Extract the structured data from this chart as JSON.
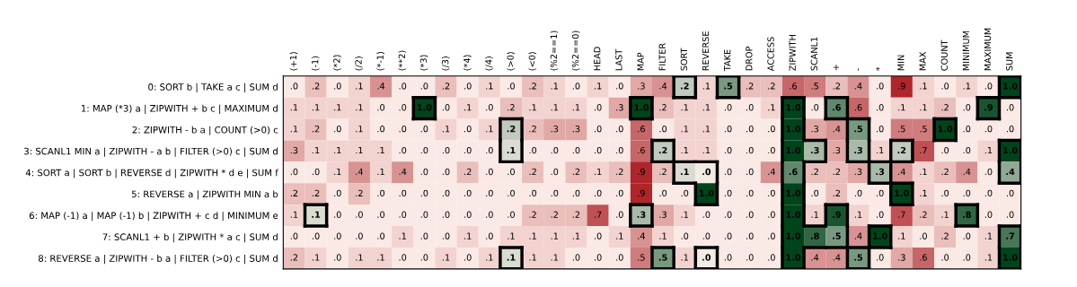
{
  "chart_data": {
    "type": "heatmap",
    "cell_labels": [
      [
        ".0",
        ".2",
        ".0",
        ".1",
        ".4",
        ".0",
        ".0",
        ".2",
        ".0",
        ".1",
        ".0",
        ".2",
        ".1",
        ".0",
        ".1",
        ".0",
        ".3",
        ".4",
        ".2",
        ".1",
        ".5",
        ".2",
        ".2",
        ".6",
        ".5",
        ".2",
        ".4",
        ".0",
        ".9",
        ".1",
        ".0",
        ".1",
        ".0",
        "1.0"
      ],
      [
        ".1",
        ".1",
        ".1",
        ".1",
        ".0",
        ".0",
        "1.0",
        ".0",
        ".1",
        ".0",
        ".2",
        ".1",
        ".1",
        ".1",
        ".0",
        ".3",
        "1.0",
        ".2",
        ".1",
        ".1",
        ".0",
        ".0",
        ".1",
        "1.0",
        ".0",
        ".6",
        ".6",
        ".0",
        ".1",
        ".1",
        ".2",
        ".0",
        ".9",
        ".0"
      ],
      [
        ".1",
        ".2",
        ".0",
        ".1",
        ".0",
        ".0",
        ".0",
        ".1",
        ".0",
        ".1",
        ".2",
        ".2",
        ".3",
        ".3",
        ".0",
        ".0",
        ".6",
        ".0",
        ".1",
        ".1",
        ".0",
        ".0",
        ".0",
        "1.0",
        ".3",
        ".4",
        ".5",
        ".0",
        ".5",
        ".5",
        "1.0",
        ".0",
        ".0",
        ".0"
      ],
      [
        ".3",
        ".1",
        ".1",
        ".1",
        ".1",
        ".0",
        ".0",
        ".0",
        ".0",
        ".0",
        ".1",
        ".0",
        ".0",
        ".0",
        ".0",
        ".0",
        ".6",
        ".2",
        ".1",
        ".1",
        ".0",
        ".0",
        ".0",
        "1.0",
        ".3",
        ".3",
        ".3",
        ".1",
        ".2",
        ".7",
        ".0",
        ".0",
        ".1",
        "1.0"
      ],
      [
        ".0",
        ".0",
        ".1",
        ".4",
        ".1",
        ".4",
        ".0",
        ".0",
        ".2",
        ".0",
        ".0",
        ".2",
        ".0",
        ".2",
        ".1",
        ".2",
        ".9",
        ".2",
        ".1",
        ".0",
        ".0",
        ".0",
        ".4",
        ".6",
        ".2",
        ".2",
        ".3",
        ".3",
        ".4",
        ".1",
        ".2",
        ".4",
        ".0",
        ".4"
      ],
      [
        ".2",
        ".2",
        ".0",
        ".2",
        ".0",
        ".0",
        ".0",
        ".0",
        ".0",
        ".0",
        ".0",
        ".0",
        ".0",
        ".0",
        ".0",
        ".0",
        ".9",
        ".0",
        ".0",
        "1.0",
        ".0",
        ".0",
        ".0",
        "1.0",
        ".0",
        ".2",
        ".0",
        ".0",
        "1.0",
        ".1",
        ".0",
        ".0",
        ".0",
        ".0"
      ],
      [
        ".1",
        ".1",
        ".0",
        ".0",
        ".0",
        ".0",
        ".0",
        ".0",
        ".0",
        ".0",
        ".0",
        ".2",
        ".2",
        ".2",
        ".7",
        ".0",
        ".3",
        ".3",
        ".1",
        ".0",
        ".0",
        ".0",
        ".0",
        "1.0",
        ".1",
        ".9",
        ".1",
        ".0",
        ".7",
        ".2",
        ".1",
        ".8",
        ".0",
        ".0"
      ],
      [
        ".0",
        ".0",
        ".0",
        ".0",
        ".0",
        ".1",
        ".0",
        ".0",
        ".1",
        ".0",
        ".1",
        ".1",
        ".1",
        ".1",
        ".0",
        ".1",
        ".4",
        ".1",
        ".0",
        ".0",
        ".0",
        ".0",
        ".0",
        "1.0",
        ".8",
        ".5",
        ".4",
        "1.0",
        ".1",
        ".0",
        ".2",
        ".0",
        ".1",
        ".7"
      ],
      [
        ".2",
        ".1",
        ".0",
        ".1",
        ".1",
        ".0",
        ".0",
        ".1",
        ".0",
        ".1",
        ".1",
        ".1",
        ".1",
        ".0",
        ".0",
        ".0",
        ".5",
        ".5",
        ".1",
        ".0",
        ".0",
        ".0",
        ".0",
        "1.0",
        ".4",
        ".4",
        ".5",
        ".0",
        ".3",
        ".6",
        ".0",
        ".0",
        ".1",
        "1.0"
      ]
    ],
    "categories": [
      "(+1)",
      "(-1)",
      "(*2)",
      "(/2)",
      "(*-1)",
      "(**2)",
      "(*3)",
      "(/3)",
      "(*4)",
      "(/4)",
      "(>0)",
      "(<0)",
      "(%2==1)",
      "(%2==0)",
      "HEAD",
      "LAST",
      "MAP",
      "FILTER",
      "SORT",
      "REVERSE",
      "TAKE",
      "DROP",
      "ACCESS",
      "ZIPWITH",
      "SCANL1",
      "+",
      "-",
      "*",
      "MIN",
      "MAX",
      "COUNT",
      "MINIMUM",
      "MAXIMUM",
      "SUM"
    ],
    "y_categories": [
      "0: SORT b | TAKE a c | SUM d",
      "1: MAP (*3) a | ZIPWITH + b c | MAXIMUM d",
      "2: ZIPWITH - b a | COUNT (>0) c",
      "3: SCANL1 MIN a | ZIPWITH - a b | FILTER (>0) c | SUM d",
      "4: SORT a | SORT b | REVERSE d | ZIPWITH * d e | SUM f",
      "5: REVERSE a | ZIPWITH MIN a b",
      "6: MAP (-1) a | MAP (-1) b | ZIPWITH + c d | MINIMUM e",
      "7: SCANL1 + b | ZIPWITH * a c | SUM d",
      "8: REVERSE a | ZIPWITH - b a | FILTER (>0) c | SUM d"
    ],
    "cells": [
      [
        0.0,
        0.2,
        0.0,
        0.1,
        0.4,
        0.0,
        0.0,
        0.2,
        0.0,
        0.1,
        0.0,
        0.2,
        0.1,
        0.0,
        0.1,
        0.0,
        0.3,
        0.4,
        0.2,
        0.1,
        0.5,
        0.2,
        0.2,
        0.6,
        0.5,
        0.2,
        0.4,
        0.0,
        0.9,
        0.1,
        0.0,
        0.1,
        0.0,
        1.0
      ],
      [
        0.1,
        0.1,
        0.1,
        0.1,
        0.0,
        0.0,
        1.0,
        0.0,
        0.1,
        0.0,
        0.2,
        0.1,
        0.1,
        0.1,
        0.0,
        0.3,
        1.0,
        0.2,
        0.1,
        0.1,
        0.0,
        0.0,
        0.1,
        1.0,
        0.0,
        0.6,
        0.6,
        0.0,
        0.1,
        0.1,
        0.2,
        0.0,
        0.9,
        0.0
      ],
      [
        0.1,
        0.2,
        0.0,
        0.1,
        0.0,
        0.0,
        0.0,
        0.1,
        0.0,
        0.1,
        0.2,
        0.2,
        0.3,
        0.3,
        0.0,
        0.0,
        0.6,
        0.0,
        0.1,
        0.1,
        0.0,
        0.0,
        0.0,
        1.0,
        0.3,
        0.4,
        0.5,
        0.0,
        0.5,
        0.5,
        1.0,
        0.0,
        0.0,
        0.0
      ],
      [
        0.3,
        0.1,
        0.1,
        0.1,
        0.1,
        0.0,
        0.0,
        0.0,
        0.0,
        0.0,
        0.1,
        0.0,
        0.0,
        0.0,
        0.0,
        0.0,
        0.6,
        0.2,
        0.1,
        0.1,
        0.0,
        0.0,
        0.0,
        1.0,
        0.3,
        0.3,
        0.3,
        0.1,
        0.2,
        0.7,
        0.0,
        0.0,
        0.1,
        1.0
      ],
      [
        0.0,
        0.0,
        0.1,
        0.4,
        0.1,
        0.4,
        0.0,
        0.0,
        0.2,
        0.0,
        0.0,
        0.2,
        0.0,
        0.2,
        0.1,
        0.2,
        0.9,
        0.2,
        0.1,
        0.0,
        0.0,
        0.0,
        0.4,
        0.6,
        0.2,
        0.2,
        0.3,
        0.3,
        0.4,
        0.1,
        0.2,
        0.4,
        0.0,
        0.4
      ],
      [
        0.2,
        0.2,
        0.0,
        0.2,
        0.0,
        0.0,
        0.0,
        0.0,
        0.0,
        0.0,
        0.0,
        0.0,
        0.0,
        0.0,
        0.0,
        0.0,
        0.9,
        0.0,
        0.0,
        1.0,
        0.0,
        0.0,
        0.0,
        1.0,
        0.0,
        0.2,
        0.0,
        0.0,
        1.0,
        0.1,
        0.0,
        0.0,
        0.0,
        0.0
      ],
      [
        0.1,
        0.1,
        0.0,
        0.0,
        0.0,
        0.0,
        0.0,
        0.0,
        0.0,
        0.0,
        0.0,
        0.2,
        0.2,
        0.2,
        0.7,
        0.0,
        0.3,
        0.3,
        0.1,
        0.0,
        0.0,
        0.0,
        0.0,
        1.0,
        0.1,
        0.9,
        0.1,
        0.0,
        0.7,
        0.2,
        0.1,
        0.8,
        0.0,
        0.0
      ],
      [
        0.0,
        0.0,
        0.0,
        0.0,
        0.0,
        0.1,
        0.0,
        0.0,
        0.1,
        0.0,
        0.1,
        0.1,
        0.1,
        0.1,
        0.0,
        0.1,
        0.4,
        0.1,
        0.0,
        0.0,
        0.0,
        0.0,
        0.0,
        1.0,
        0.8,
        0.5,
        0.4,
        1.0,
        0.1,
        0.0,
        0.2,
        0.0,
        0.1,
        0.7
      ],
      [
        0.2,
        0.1,
        0.0,
        0.1,
        0.1,
        0.0,
        0.0,
        0.1,
        0.0,
        0.1,
        0.1,
        0.1,
        0.1,
        0.0,
        0.0,
        0.0,
        0.5,
        0.5,
        0.1,
        0.0,
        0.0,
        0.0,
        0.0,
        1.0,
        0.4,
        0.4,
        0.5,
        0.0,
        0.3,
        0.6,
        0.0,
        0.0,
        0.1,
        1.0
      ]
    ],
    "colors": [
      [
        "#a50f15",
        "#a50f15",
        "#a50f15",
        "#a50f15",
        "#a50f15",
        "#a50f15",
        "#a50f15",
        "#a50f15",
        "#a50f15",
        "#a50f15",
        "#a50f15",
        "#a50f15",
        "#a50f15",
        "#a50f15",
        "#a50f15",
        "#a50f15",
        "#a50f15",
        "#a50f15",
        "#00441b",
        "#a50f15",
        "#00441b",
        "#a50f15",
        "#a50f15",
        "#a50f15",
        "#a50f15",
        "#a50f15",
        "#a50f15",
        "#a50f15",
        "#a50f15",
        "#a50f15",
        "#a50f15",
        "#a50f15",
        "#a50f15",
        "#00441b"
      ],
      [
        "#a50f15",
        "#a50f15",
        "#a50f15",
        "#a50f15",
        "#a50f15",
        "#a50f15",
        "#00441b",
        "#a50f15",
        "#a50f15",
        "#a50f15",
        "#a50f15",
        "#a50f15",
        "#a50f15",
        "#a50f15",
        "#a50f15",
        "#a50f15",
        "#00441b",
        "#a50f15",
        "#a50f15",
        "#a50f15",
        "#a50f15",
        "#a50f15",
        "#a50f15",
        "#00441b",
        "#a50f15",
        "#00441b",
        "#a50f15",
        "#a50f15",
        "#a50f15",
        "#a50f15",
        "#a50f15",
        "#a50f15",
        "#00441b",
        "#a50f15"
      ],
      [
        "#a50f15",
        "#a50f15",
        "#a50f15",
        "#a50f15",
        "#a50f15",
        "#a50f15",
        "#a50f15",
        "#a50f15",
        "#a50f15",
        "#a50f15",
        "#00441b",
        "#a50f15",
        "#a50f15",
        "#a50f15",
        "#a50f15",
        "#a50f15",
        "#a50f15",
        "#a50f15",
        "#a50f15",
        "#a50f15",
        "#a50f15",
        "#a50f15",
        "#a50f15",
        "#00441b",
        "#a50f15",
        "#a50f15",
        "#00441b",
        "#a50f15",
        "#a50f15",
        "#a50f15",
        "#00441b",
        "#a50f15",
        "#a50f15",
        "#a50f15"
      ],
      [
        "#a50f15",
        "#a50f15",
        "#a50f15",
        "#a50f15",
        "#a50f15",
        "#a50f15",
        "#a50f15",
        "#a50f15",
        "#a50f15",
        "#a50f15",
        "#00441b",
        "#a50f15",
        "#a50f15",
        "#a50f15",
        "#a50f15",
        "#a50f15",
        "#a50f15",
        "#00441b",
        "#a50f15",
        "#a50f15",
        "#a50f15",
        "#a50f15",
        "#a50f15",
        "#00441b",
        "#00441b",
        "#a50f15",
        "#00441b",
        "#a50f15",
        "#00441b",
        "#a50f15",
        "#a50f15",
        "#a50f15",
        "#a50f15",
        "#00441b"
      ],
      [
        "#a50f15",
        "#a50f15",
        "#a50f15",
        "#a50f15",
        "#a50f15",
        "#a50f15",
        "#a50f15",
        "#a50f15",
        "#a50f15",
        "#a50f15",
        "#a50f15",
        "#a50f15",
        "#a50f15",
        "#a50f15",
        "#a50f15",
        "#a50f15",
        "#a50f15",
        "#a50f15",
        "#00441b",
        "#00441b",
        "#a50f15",
        "#a50f15",
        "#a50f15",
        "#00441b",
        "#a50f15",
        "#a50f15",
        "#a50f15",
        "#00441b",
        "#a50f15",
        "#a50f15",
        "#a50f15",
        "#a50f15",
        "#a50f15",
        "#00441b"
      ],
      [
        "#a50f15",
        "#a50f15",
        "#a50f15",
        "#a50f15",
        "#a50f15",
        "#a50f15",
        "#a50f15",
        "#a50f15",
        "#a50f15",
        "#a50f15",
        "#a50f15",
        "#a50f15",
        "#a50f15",
        "#a50f15",
        "#a50f15",
        "#a50f15",
        "#a50f15",
        "#a50f15",
        "#a50f15",
        "#00441b",
        "#a50f15",
        "#a50f15",
        "#a50f15",
        "#00441b",
        "#a50f15",
        "#a50f15",
        "#a50f15",
        "#a50f15",
        "#00441b",
        "#a50f15",
        "#a50f15",
        "#a50f15",
        "#a50f15",
        "#a50f15"
      ],
      [
        "#a50f15",
        "#00441b",
        "#a50f15",
        "#a50f15",
        "#a50f15",
        "#a50f15",
        "#a50f15",
        "#a50f15",
        "#a50f15",
        "#a50f15",
        "#a50f15",
        "#a50f15",
        "#a50f15",
        "#a50f15",
        "#a50f15",
        "#a50f15",
        "#00441b",
        "#a50f15",
        "#a50f15",
        "#a50f15",
        "#a50f15",
        "#a50f15",
        "#a50f15",
        "#00441b",
        "#a50f15",
        "#00441b",
        "#a50f15",
        "#a50f15",
        "#a50f15",
        "#a50f15",
        "#a50f15",
        "#00441b",
        "#a50f15",
        "#a50f15"
      ],
      [
        "#a50f15",
        "#a50f15",
        "#a50f15",
        "#a50f15",
        "#a50f15",
        "#a50f15",
        "#a50f15",
        "#a50f15",
        "#a50f15",
        "#a50f15",
        "#a50f15",
        "#a50f15",
        "#a50f15",
        "#a50f15",
        "#a50f15",
        "#a50f15",
        "#a50f15",
        "#a50f15",
        "#a50f15",
        "#a50f15",
        "#a50f15",
        "#a50f15",
        "#a50f15",
        "#00441b",
        "#00441b",
        "#00441b",
        "#a50f15",
        "#00441b",
        "#a50f15",
        "#a50f15",
        "#a50f15",
        "#a50f15",
        "#a50f15",
        "#00441b"
      ],
      [
        "#a50f15",
        "#a50f15",
        "#a50f15",
        "#a50f15",
        "#a50f15",
        "#a50f15",
        "#a50f15",
        "#a50f15",
        "#a50f15",
        "#a50f15",
        "#00441b",
        "#a50f15",
        "#a50f15",
        "#a50f15",
        "#a50f15",
        "#a50f15",
        "#a50f15",
        "#00441b",
        "#a50f15",
        "#00441b",
        "#a50f15",
        "#a50f15",
        "#a50f15",
        "#00441b",
        "#a50f15",
        "#a50f15",
        "#00441b",
        "#a50f15",
        "#a50f15",
        "#a50f15",
        "#a50f15",
        "#a50f15",
        "#a50f15",
        "#00441b"
      ]
    ]
  }
}
